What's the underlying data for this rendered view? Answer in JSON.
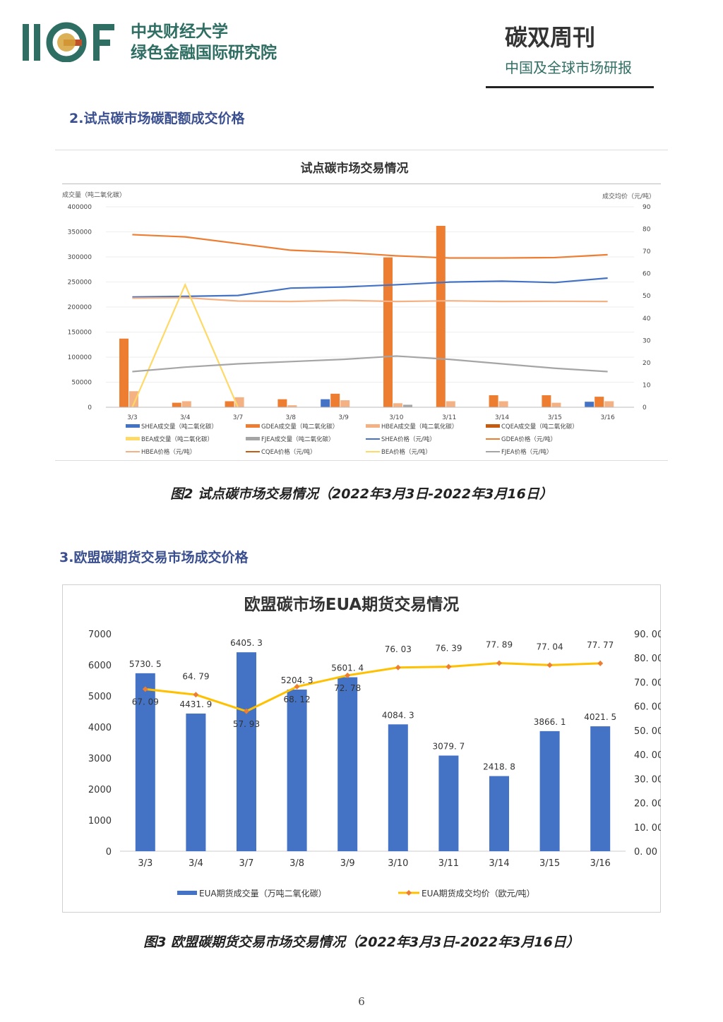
{
  "header": {
    "logo_text": "IIGF",
    "org_line1": "中央财经大学",
    "org_line2": "绿色金融国际研究院",
    "pub_title": "碳双周刊",
    "pub_subtitle": "中国及全球市场研报"
  },
  "section2_title": "2.试点碳市场碳配额成交价格",
  "section3_title": "3.欧盟碳期货交易市场成交价格",
  "caption2": "图2 试点碳市场交易情况（2022年3月3日-2022年3月16日）",
  "caption3": "图3 欧盟碳期货交易市场交易情况（2022年3月3日-2022年3月16日）",
  "page_number": "6",
  "colors": {
    "SHEA": "#4472c4",
    "GDEA": "#ed7d31",
    "HBEA": "#f4b183",
    "CQEA": "#c55a11",
    "BEA": "#ffd966",
    "FJEA": "#a5a5a5",
    "teal": "#2f6e63",
    "eua_bar": "#4472c4",
    "eua_line": "#ffc000"
  },
  "chart_data": [
    {
      "type": "bar",
      "title": "试点碳市场交易情况",
      "ylabel": "成交量（吨二氧化碳）",
      "y2label": "成交均价（元/吨）",
      "ylim": [
        0,
        400000
      ],
      "y2lim": [
        0,
        90
      ],
      "y_ticks": [
        "400000",
        "350000",
        "300000",
        "250000",
        "200000",
        "150000",
        "100000",
        "50000",
        "0"
      ],
      "y2_ticks": [
        "90",
        "80",
        "70",
        "60",
        "50",
        "40",
        "30",
        "20",
        "10",
        "0"
      ],
      "categories": [
        "3/3",
        "3/4",
        "3/7",
        "3/8",
        "3/9",
        "3/10",
        "3/11",
        "3/14",
        "3/15",
        "3/16"
      ],
      "bar_series": [
        {
          "name": "SHEA成交量（吨二氧化碳）",
          "color": "#4472c4",
          "values": [
            0,
            0,
            0,
            0,
            16000,
            0,
            0,
            0,
            0,
            11000
          ]
        },
        {
          "name": "GDEA成交量（吨二氧化碳）",
          "color": "#ed7d31",
          "values": [
            137000,
            9000,
            12000,
            16000,
            27000,
            299000,
            362000,
            24000,
            24000,
            21000
          ]
        },
        {
          "name": "HBEA成交量（吨二氧化碳）",
          "color": "#f4b183",
          "values": [
            32000,
            12000,
            20000,
            4000,
            14000,
            8000,
            12000,
            12000,
            9000,
            12000
          ]
        },
        {
          "name": "CQEA成交量（吨二氧化碳）",
          "color": "#c55a11",
          "values": [
            0,
            0,
            0,
            0,
            0,
            0,
            0,
            0,
            0,
            0
          ]
        },
        {
          "name": "BEA成交量（吨二氧化碳）",
          "color": "#ffd966",
          "values": [
            0,
            0,
            0,
            0,
            0,
            0,
            0,
            0,
            0,
            0
          ]
        },
        {
          "name": "FJEA成交量（吨二氧化碳）",
          "color": "#a5a5a5",
          "values": [
            0,
            0,
            0,
            0,
            0,
            5000,
            0,
            0,
            0,
            0
          ]
        }
      ],
      "line_series": [
        {
          "name": "SHEA价格（元/吨）",
          "color": "#4472c4",
          "values": [
            49.5,
            49.8,
            50.2,
            53.5,
            54,
            55,
            56.2,
            56.6,
            56,
            58
          ]
        },
        {
          "name": "GDEA价格（元/吨）",
          "color": "#ed7d31",
          "values": [
            77.5,
            76.5,
            73.5,
            70.5,
            69.5,
            68,
            67,
            67,
            67.2,
            68.5
          ]
        },
        {
          "name": "HBEA价格（元/吨）",
          "color": "#f4b183",
          "values": [
            49,
            49.2,
            47.7,
            47.5,
            48,
            47.5,
            47.8,
            47.5,
            47.6,
            47.5
          ]
        },
        {
          "name": "CQEA价格（元/吨）",
          "color": "#c55a11",
          "values": [
            null,
            null,
            null,
            null,
            null,
            null,
            null,
            null,
            null,
            null
          ]
        },
        {
          "name": "BEA价格（元/吨）",
          "color": "#ffd966",
          "values": [
            0,
            55,
            0,
            null,
            null,
            null,
            null,
            null,
            null,
            null
          ]
        },
        {
          "name": "FJEA价格（元/吨）",
          "color": "#a5a5a5",
          "values": [
            16,
            18,
            19.5,
            20.5,
            21.5,
            23,
            21.5,
            19.5,
            17.5,
            16
          ]
        }
      ]
    },
    {
      "type": "bar",
      "title": "欧盟碳市场EUA期货交易情况",
      "ylim": [
        0,
        7000
      ],
      "y2lim": [
        0,
        90
      ],
      "y_ticks": [
        "7000",
        "6000",
        "5000",
        "4000",
        "3000",
        "2000",
        "1000",
        "0"
      ],
      "y2_ticks": [
        "90. 00",
        "80. 00",
        "70. 00",
        "60. 00",
        "50. 00",
        "40. 00",
        "30. 00",
        "20. 00",
        "10. 00",
        "0. 00"
      ],
      "categories": [
        "3/3",
        "3/4",
        "3/7",
        "3/8",
        "3/9",
        "3/10",
        "3/11",
        "3/14",
        "3/15",
        "3/16"
      ],
      "series": [
        {
          "name": "EUA期货成交量（万吨二氧化碳）",
          "type": "bar",
          "color": "#4472c4",
          "values": [
            5730.5,
            4431.9,
            6405.3,
            5204.3,
            5601.4,
            4084.3,
            3079.7,
            2418.8,
            3866.1,
            4021.5
          ],
          "labels": [
            "5730. 5",
            "4431. 9",
            "6405. 3",
            "5204. 3",
            "5601. 4",
            "4084. 3",
            "3079. 7",
            "2418. 8",
            "3866. 1",
            "4021. 5"
          ]
        },
        {
          "name": "EUA期货成交均价（欧元/吨）",
          "type": "line",
          "color": "#ffc000",
          "values": [
            67.09,
            64.79,
            57.93,
            68.12,
            72.78,
            76.03,
            76.39,
            77.89,
            77.04,
            77.77
          ],
          "labels": [
            "67. 09",
            "64. 79",
            "57. 93",
            "68. 12",
            "72. 78",
            "76. 03",
            "76. 39",
            "77. 89",
            "77. 04",
            "77. 77"
          ]
        }
      ]
    }
  ]
}
